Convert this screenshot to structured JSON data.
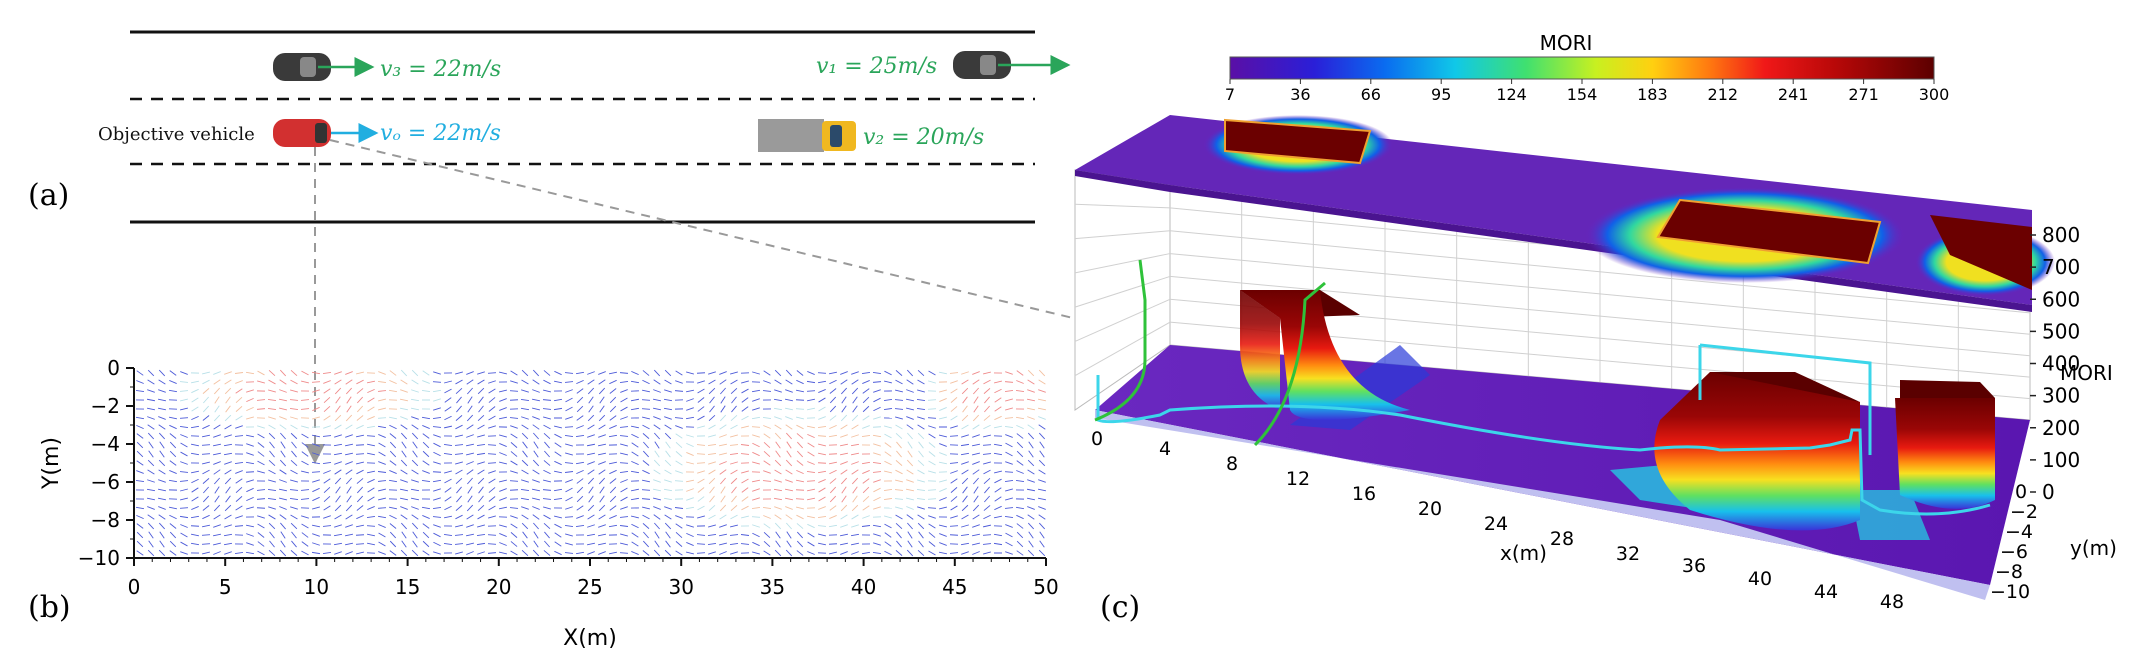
{
  "panel_labels": {
    "a": "(a)",
    "b": "(b)",
    "c": "(c)"
  },
  "scenario": {
    "objective_label": "Objective vehicle",
    "vehicles": [
      {
        "id": "v3",
        "speed_label": "v₃ = 22m/s",
        "color": "#2aa55a",
        "type": "car"
      },
      {
        "id": "v1",
        "speed_label": "v₁ = 25m/s",
        "color": "#2aa55a",
        "type": "car"
      },
      {
        "id": "vo",
        "speed_label": "vₒ = 22m/s",
        "color": "#21aee0",
        "type": "car"
      },
      {
        "id": "v2",
        "speed_label": "v₂ = 20m/s",
        "color": "#2aa55a",
        "type": "truck"
      }
    ]
  },
  "field_plot": {
    "xlabel": "X(m)",
    "ylabel": "Y(m)",
    "xticks": [
      "0",
      "5",
      "10",
      "15",
      "20",
      "25",
      "30",
      "35",
      "40",
      "45",
      "50"
    ],
    "yticks": [
      "0",
      "−2",
      "−4",
      "−6",
      "−8",
      "−10"
    ],
    "xlim": [
      0,
      50
    ],
    "ylim": [
      -10,
      0
    ]
  },
  "surface_plot": {
    "colorbar_title": "MORI",
    "colorbar_ticks": [
      "7",
      "36",
      "66",
      "95",
      "124",
      "154",
      "183",
      "212",
      "241",
      "271",
      "300"
    ],
    "zlabel": "MORI",
    "zticks": [
      "0",
      "100",
      "200",
      "300",
      "400",
      "500",
      "600",
      "700",
      "800"
    ],
    "xlabel": "x(m)",
    "xticks": [
      "0",
      "4",
      "8",
      "12",
      "16",
      "20",
      "24",
      "28",
      "32",
      "36",
      "40",
      "44",
      "48"
    ],
    "ylabel": "y(m)",
    "yticks": [
      "0",
      "−2",
      "−4",
      "−6",
      "−8",
      "−10"
    ],
    "colors": {
      "low": "#5a0fa6",
      "high": "#6b0000",
      "trajectory_cyan": "#3cd6ea",
      "trajectory_green": "#2fc23a"
    }
  }
}
